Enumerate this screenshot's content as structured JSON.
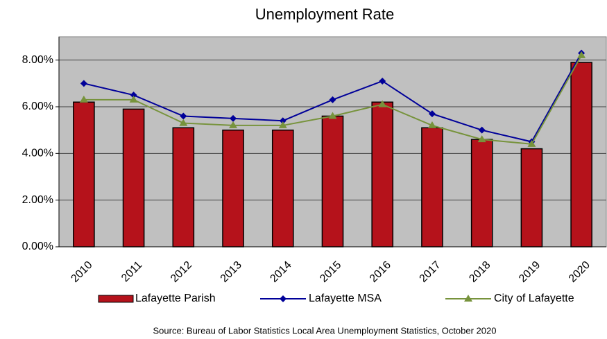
{
  "chart_data": {
    "type": "bar",
    "title": "Unemployment Rate",
    "categories": [
      "2010",
      "2011",
      "2012",
      "2013",
      "2014",
      "2015",
      "2016",
      "2017",
      "2018",
      "2019",
      "2020"
    ],
    "series": [
      {
        "name": "Lafayette Parish",
        "type": "bar",
        "color": "#b5121b",
        "values": [
          6.2,
          5.9,
          5.1,
          5.0,
          5.0,
          5.6,
          6.2,
          5.1,
          4.6,
          4.2,
          7.9
        ]
      },
      {
        "name": "Lafayette MSA",
        "type": "line",
        "marker": "diamond",
        "color": "#000099",
        "values": [
          7.0,
          6.5,
          5.6,
          5.5,
          5.4,
          6.3,
          7.1,
          5.7,
          5.0,
          4.5,
          8.3
        ]
      },
      {
        "name": "City of Lafayette",
        "type": "line",
        "marker": "triangle",
        "color": "#77933c",
        "values": [
          6.3,
          6.3,
          5.3,
          5.2,
          5.2,
          5.6,
          6.1,
          5.2,
          4.6,
          4.4,
          8.2
        ]
      }
    ],
    "ylim": [
      0,
      9
    ],
    "yticks": [
      {
        "value": 0,
        "label": "0.00%"
      },
      {
        "value": 2,
        "label": "2.00%"
      },
      {
        "value": 4,
        "label": "4.00%"
      },
      {
        "value": 6,
        "label": "6.00%"
      },
      {
        "value": 8,
        "label": "8.00%"
      }
    ],
    "grid": true,
    "legend": "bottom",
    "source": "Source: Bureau of Labor Statistics Local Area Unemployment Statistics, October 2020"
  }
}
